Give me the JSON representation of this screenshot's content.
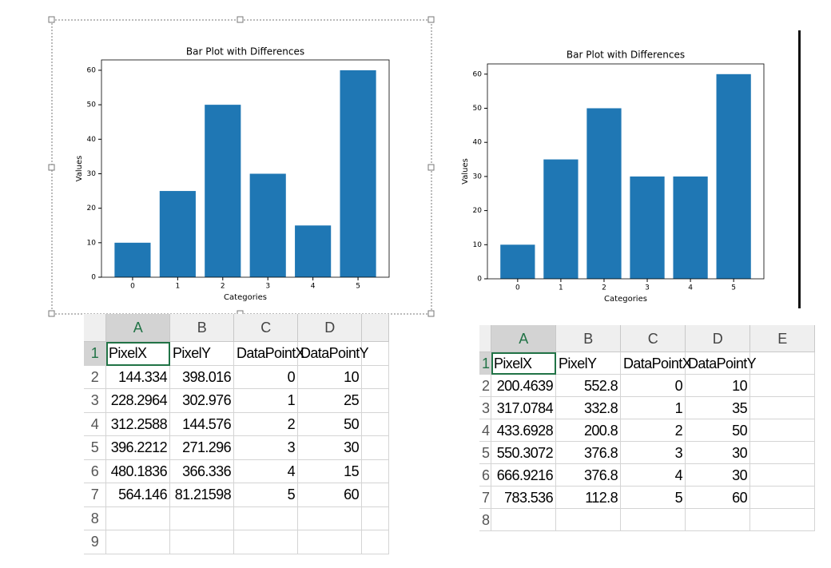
{
  "chart_data": [
    {
      "type": "bar",
      "title": "Bar Plot with Differences",
      "x_label": "Categories",
      "y_label": "Values",
      "categories": [
        0,
        1,
        2,
        3,
        4,
        5
      ],
      "values": [
        10,
        25,
        50,
        30,
        15,
        60
      ],
      "color": "#1f77b4",
      "ylim": [
        0,
        63
      ],
      "yticks": [
        0,
        10,
        20,
        30,
        40,
        50,
        60
      ]
    },
    {
      "type": "bar",
      "title": "Bar Plot with Differences",
      "x_label": "Categories",
      "y_label": "Values",
      "categories": [
        0,
        1,
        2,
        3,
        4,
        5
      ],
      "values": [
        10,
        35,
        50,
        30,
        30,
        60
      ],
      "color": "#1f77b4",
      "ylim": [
        0,
        63
      ],
      "yticks": [
        0,
        10,
        20,
        30,
        40,
        50,
        60
      ]
    }
  ],
  "tables": [
    {
      "columns": [
        "A",
        "B",
        "C",
        "D"
      ],
      "row_numbers": [
        1,
        2,
        3,
        4,
        5,
        6,
        7,
        8,
        9
      ],
      "rows": [
        [
          "PixelX",
          "PixelY",
          "DataPointX",
          "DataPointY"
        ],
        [
          144.334,
          398.016,
          0,
          10
        ],
        [
          228.2964,
          302.976,
          1,
          25
        ],
        [
          312.2588,
          144.576,
          2,
          50
        ],
        [
          396.2212,
          271.296,
          3,
          30
        ],
        [
          480.1836,
          366.336,
          4,
          15
        ],
        [
          564.146,
          81.21598,
          5,
          60
        ]
      ]
    },
    {
      "columns": [
        "A",
        "B",
        "C",
        "D",
        "E"
      ],
      "row_numbers": [
        1,
        2,
        3,
        4,
        5,
        6,
        7,
        8
      ],
      "rows": [
        [
          "PixelX",
          "PixelY",
          "DataPointX",
          "DataPointY"
        ],
        [
          200.4639,
          552.8,
          0,
          10
        ],
        [
          317.0784,
          332.8,
          1,
          35
        ],
        [
          433.6928,
          200.8,
          2,
          50
        ],
        [
          550.3072,
          376.8,
          3,
          30
        ],
        [
          666.9216,
          376.8,
          4,
          30
        ],
        [
          783.536,
          112.8,
          5,
          60
        ]
      ]
    }
  ]
}
